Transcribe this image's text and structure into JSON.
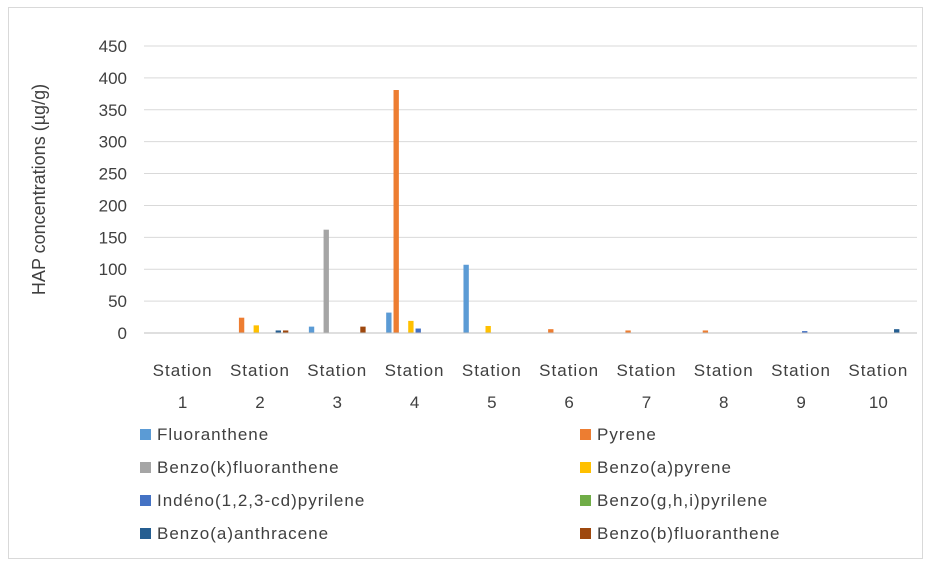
{
  "chart_data": {
    "type": "bar",
    "title": "",
    "xlabel": "",
    "ylabel": "HAP concentrations (µg/g)",
    "ylim": [
      0,
      450
    ],
    "yticks": [
      0,
      50,
      100,
      150,
      200,
      250,
      300,
      350,
      400,
      450
    ],
    "grid": true,
    "legend_position": "bottom",
    "categories": [
      [
        "Station",
        "1"
      ],
      [
        "Station",
        "2"
      ],
      [
        "Station",
        "3"
      ],
      [
        "Station",
        "4"
      ],
      [
        "Station",
        "5"
      ],
      [
        "Station",
        "6"
      ],
      [
        "Station",
        "7"
      ],
      [
        "Station",
        "8"
      ],
      [
        "Station",
        "9"
      ],
      [
        "Station",
        "10"
      ]
    ],
    "series": [
      {
        "name": "Fluoranthene",
        "color": "#5B9BD5",
        "values": [
          0,
          0,
          10,
          32,
          107,
          0,
          0,
          0,
          0,
          0
        ]
      },
      {
        "name": "Pyrene",
        "color": "#ED7D31",
        "values": [
          0,
          24,
          0,
          381,
          0,
          6,
          4,
          4,
          0,
          0
        ]
      },
      {
        "name": "Benzo(k)fluoranthene",
        "color": "#A5A5A5",
        "values": [
          0,
          0,
          162,
          0,
          0,
          0,
          0,
          0,
          0,
          0
        ]
      },
      {
        "name": "Benzo(a)pyrene",
        "color": "#FFC000",
        "values": [
          0,
          12,
          0,
          19,
          11,
          0,
          0,
          0,
          0,
          0
        ]
      },
      {
        "name": "Indéno(1,2,3-cd)pyrilene",
        "color": "#4472C4",
        "values": [
          0,
          0,
          0,
          7,
          0,
          0,
          0,
          0,
          3,
          0
        ]
      },
      {
        "name": "Benzo(g,h,i)pyrilene",
        "color": "#70AD47",
        "values": [
          0,
          0,
          0,
          0,
          0,
          0,
          0,
          0,
          0,
          0
        ]
      },
      {
        "name": "Benzo(a)anthracene",
        "color": "#255E91",
        "values": [
          0,
          4,
          0,
          0,
          0,
          0,
          0,
          0,
          0,
          6
        ]
      },
      {
        "name": "Benzo(b)fluoranthene",
        "color": "#9E480E",
        "values": [
          0,
          4,
          10,
          0,
          0,
          0,
          0,
          0,
          0,
          0
        ]
      }
    ]
  }
}
